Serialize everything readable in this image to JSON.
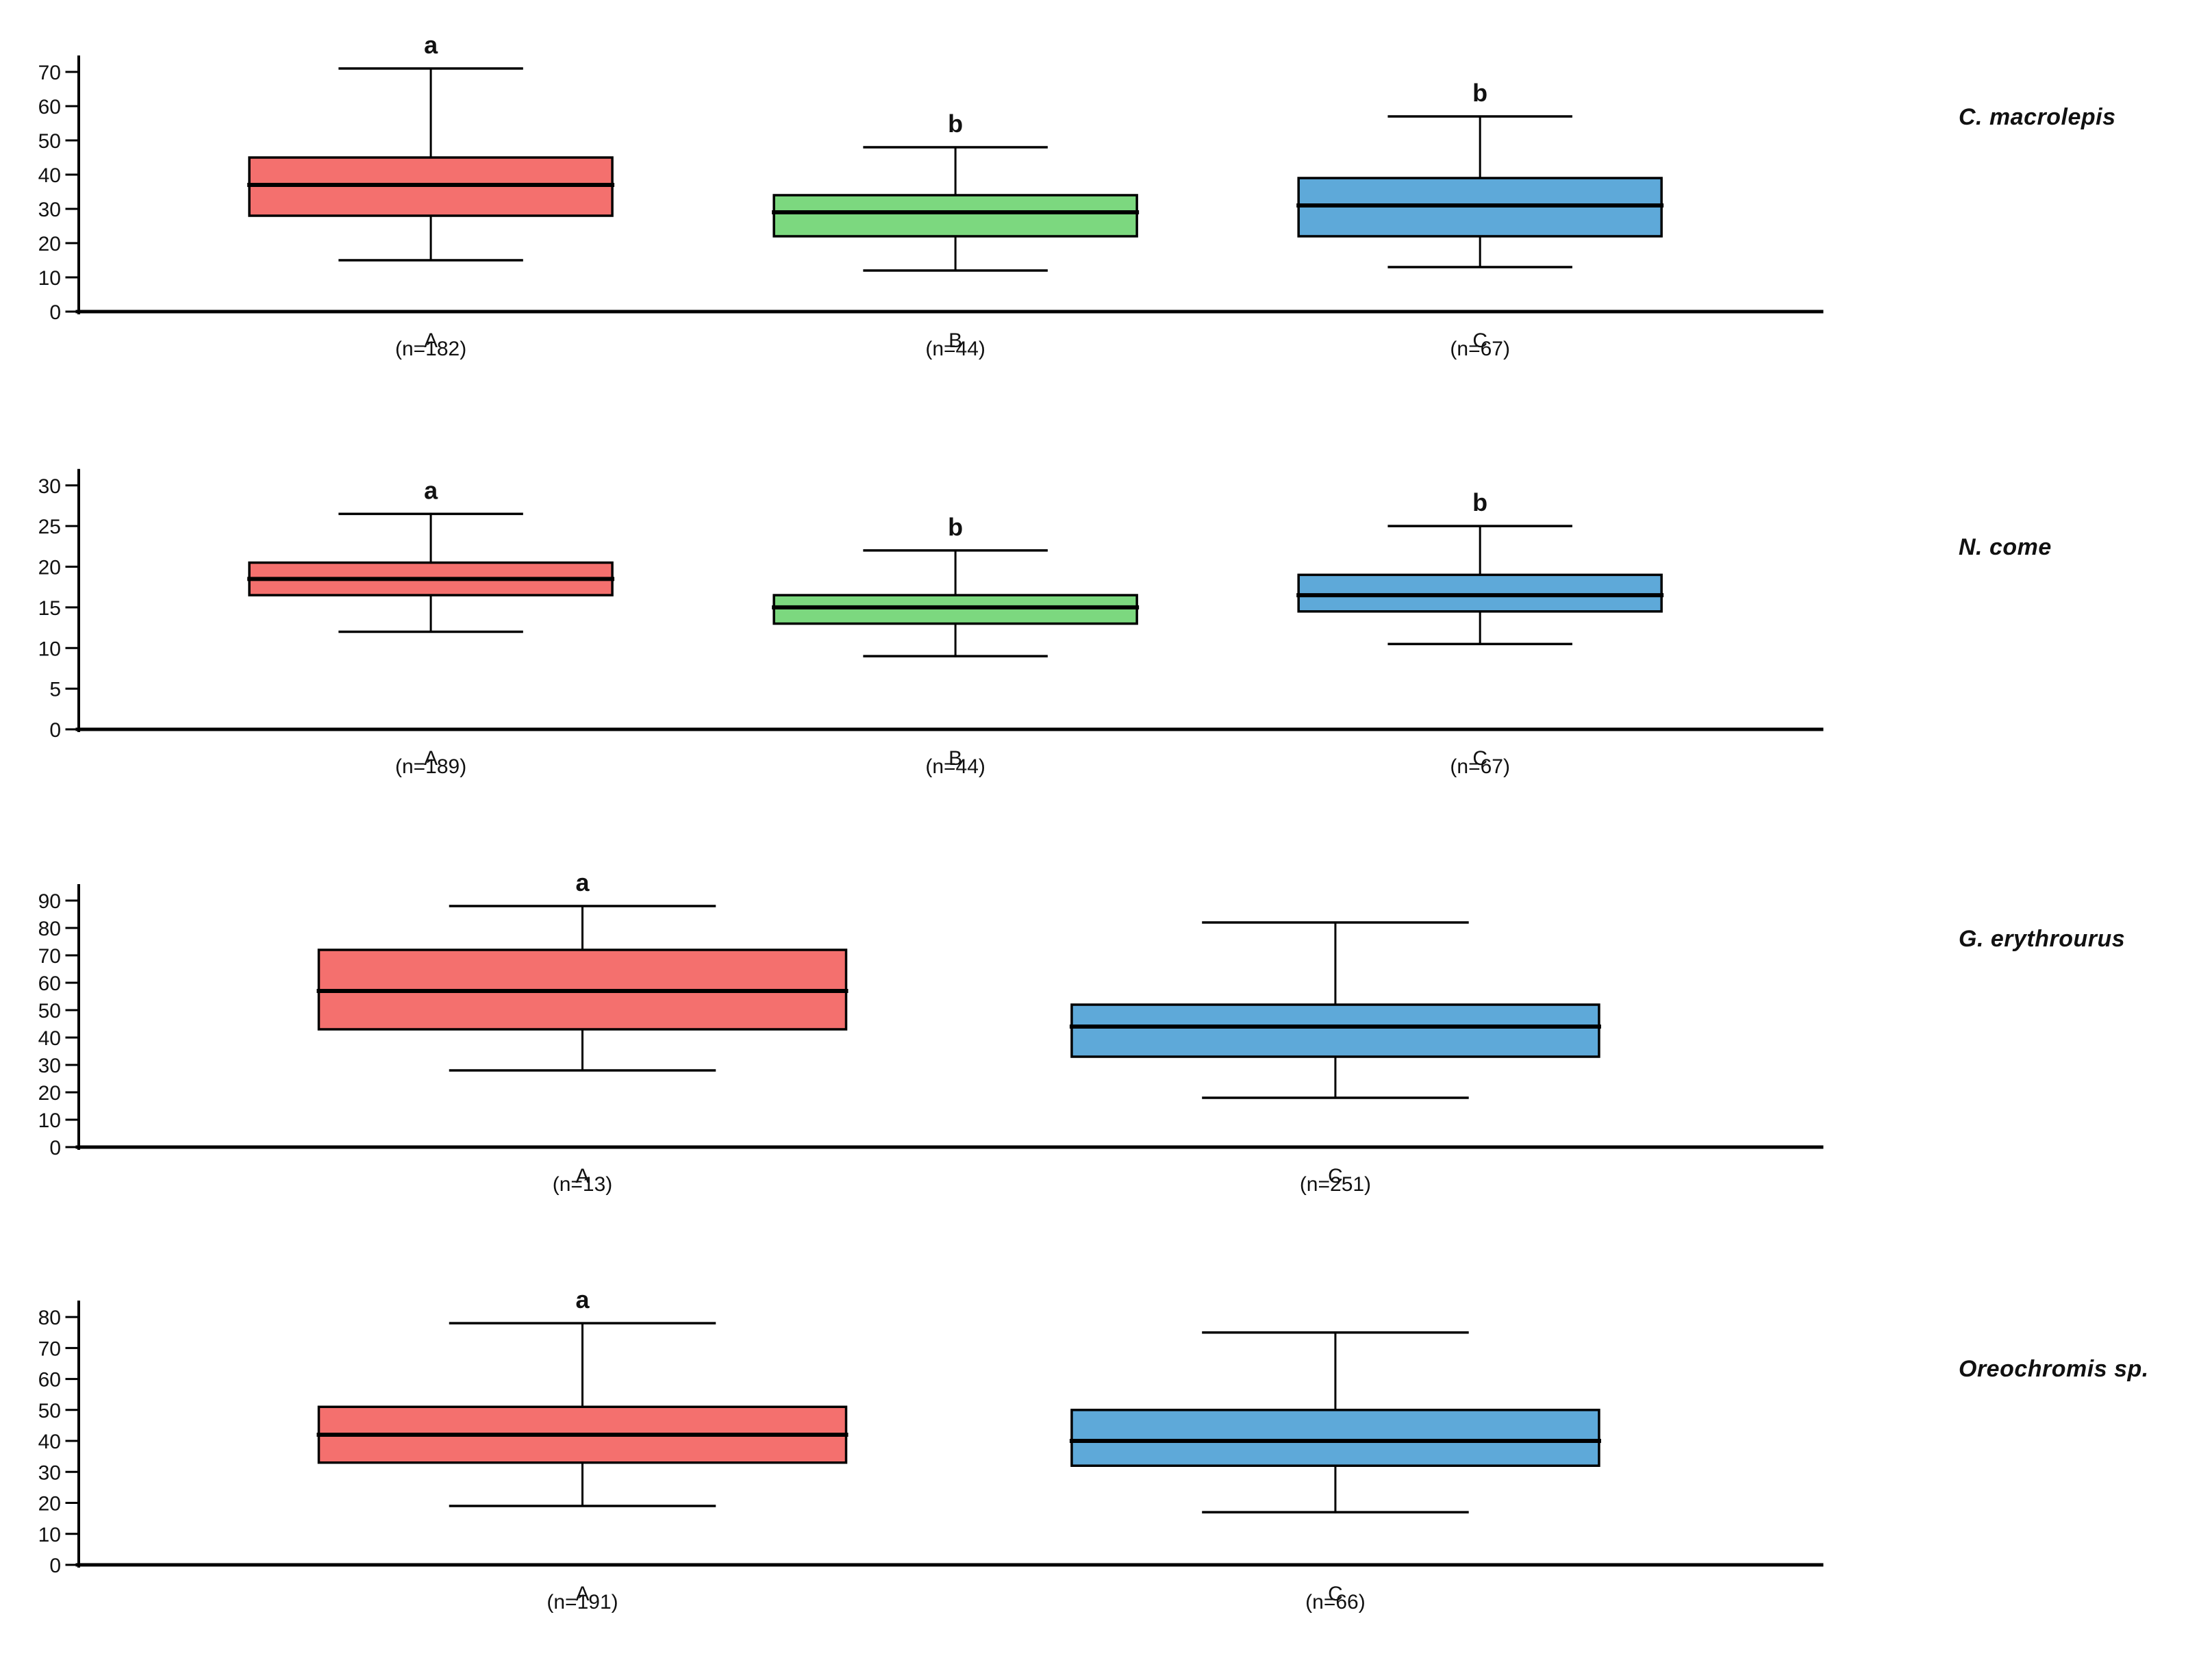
{
  "figure": {
    "background": "#ffffff",
    "axis_color": "#000000",
    "text_color": "#111111"
  },
  "chart_data": [
    {
      "type": "boxplot",
      "species": "C. macrolepis",
      "ylim": [
        0,
        76
      ],
      "yticks": [
        0,
        10,
        20,
        30,
        40,
        50,
        60,
        70
      ],
      "grid": false,
      "groups": [
        {
          "x_label_letter": "A",
          "n_label": "(n=182)",
          "sig_letter": "a",
          "color": "#F4706E",
          "whisker_low": 15,
          "q1": 28,
          "median": 37,
          "q3": 45,
          "whisker_high": 71
        },
        {
          "x_label_letter": "B",
          "n_label": "(n=44)",
          "sig_letter": "b",
          "color": "#7CD87F",
          "whisker_low": 12,
          "q1": 22,
          "median": 29,
          "q3": 34,
          "whisker_high": 48
        },
        {
          "x_label_letter": "C",
          "n_label": "(n=67)",
          "sig_letter": "b",
          "color": "#5EA9D9",
          "whisker_low": 13,
          "q1": 22,
          "median": 31,
          "q3": 39,
          "whisker_high": 57
        }
      ]
    },
    {
      "type": "boxplot",
      "species": "N. come",
      "ylim": [
        0,
        32
      ],
      "yticks": [
        0,
        5,
        10,
        15,
        20,
        25,
        30
      ],
      "grid": false,
      "groups": [
        {
          "x_label_letter": "A",
          "n_label": "(n=189)",
          "sig_letter": "a",
          "color": "#F4706E",
          "whisker_low": 12,
          "q1": 16.5,
          "median": 18.5,
          "q3": 20.5,
          "whisker_high": 26.5
        },
        {
          "x_label_letter": "B",
          "n_label": "(n=44)",
          "sig_letter": "b",
          "color": "#7CD87F",
          "whisker_low": 9,
          "q1": 13,
          "median": 15,
          "q3": 16.5,
          "whisker_high": 22
        },
        {
          "x_label_letter": "C",
          "n_label": "(n=67)",
          "sig_letter": "b",
          "color": "#5EA9D9",
          "whisker_low": 10.5,
          "q1": 14.5,
          "median": 16.5,
          "q3": 19,
          "whisker_high": 25
        }
      ]
    },
    {
      "type": "boxplot",
      "species": "G. erythrourus",
      "ylim": [
        0,
        95
      ],
      "yticks": [
        0,
        10,
        20,
        30,
        40,
        50,
        60,
        70,
        80,
        90
      ],
      "grid": false,
      "groups": [
        {
          "x_label_letter": "A",
          "n_label": "(n=13)",
          "sig_letter": "a",
          "color": "#F4706E",
          "whisker_low": 28,
          "q1": 43,
          "median": 57,
          "q3": 72,
          "whisker_high": 88
        },
        {
          "x_label_letter": "C",
          "n_label": "(n=251)",
          "sig_letter": "",
          "color": "#5EA9D9",
          "whisker_low": 18,
          "q1": 33,
          "median": 44,
          "q3": 52,
          "whisker_high": 82
        }
      ]
    },
    {
      "type": "boxplot",
      "species": "Oreochromis sp.",
      "ylim": [
        0,
        84
      ],
      "yticks": [
        0,
        10,
        20,
        30,
        40,
        50,
        60,
        70,
        80
      ],
      "grid": false,
      "groups": [
        {
          "x_label_letter": "A",
          "n_label": "(n=191)",
          "sig_letter": "a",
          "color": "#F4706E",
          "whisker_low": 19,
          "q1": 33,
          "median": 42,
          "q3": 51,
          "whisker_high": 78
        },
        {
          "x_label_letter": "C",
          "n_label": "(n=66)",
          "sig_letter": "",
          "color": "#5EA9D9",
          "whisker_low": 17,
          "q1": 32,
          "median": 40,
          "q3": 50,
          "whisker_high": 75
        }
      ]
    }
  ]
}
